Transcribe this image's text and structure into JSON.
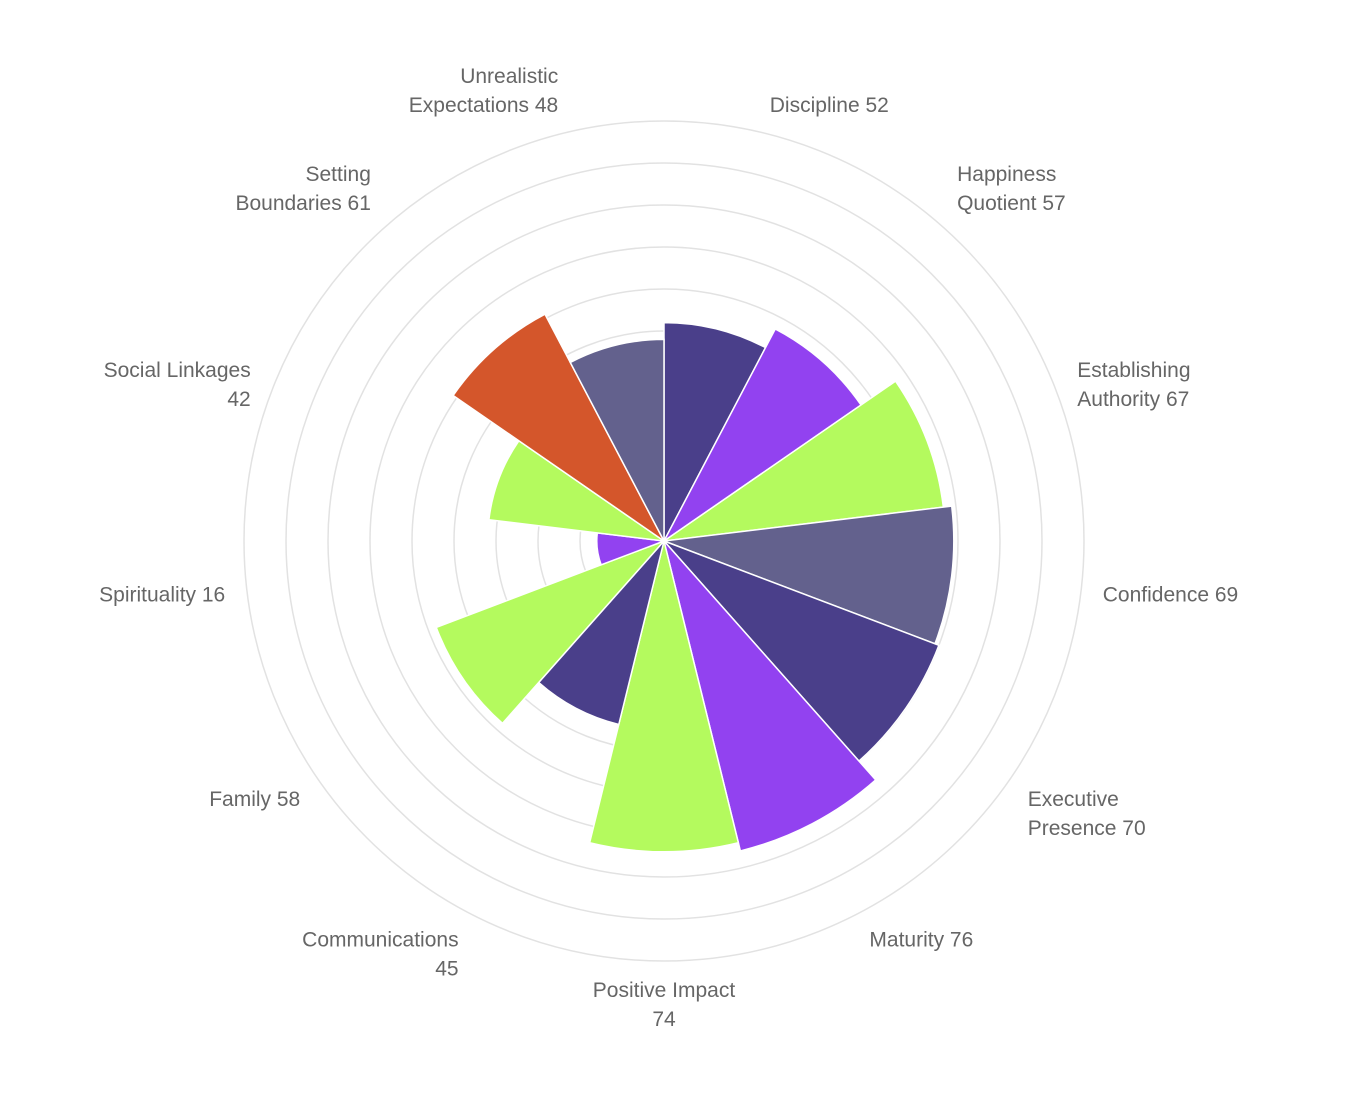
{
  "chart_data": {
    "type": "polar-area",
    "rmax": 100,
    "ring_step": 10,
    "grid": true,
    "legend": "none",
    "categories": [
      {
        "name": "Discipline",
        "value": 52,
        "color": "#4a3f8a",
        "label_lines": [
          "Discipline 52"
        ]
      },
      {
        "name": "Happiness Quotient",
        "value": 57,
        "color": "#9242f0",
        "label_lines": [
          "Happiness",
          "Quotient 57"
        ]
      },
      {
        "name": "Establishing Authority",
        "value": 67,
        "color": "#b4fa5e",
        "label_lines": [
          "Establishing",
          "Authority 67"
        ]
      },
      {
        "name": "Confidence",
        "value": 69,
        "color": "#63618d",
        "label_lines": [
          "Confidence 69"
        ]
      },
      {
        "name": "Executive Presence",
        "value": 70,
        "color": "#4a3f8a",
        "label_lines": [
          "Executive",
          "Presence 70"
        ]
      },
      {
        "name": "Maturity",
        "value": 76,
        "color": "#9242f0",
        "label_lines": [
          "Maturity 76"
        ]
      },
      {
        "name": "Positive Impact",
        "value": 74,
        "color": "#b4fa5e",
        "label_lines": [
          "Positive Impact",
          "74"
        ]
      },
      {
        "name": "Communications",
        "value": 45,
        "color": "#4a3f8a",
        "label_lines": [
          "Communications",
          "45"
        ]
      },
      {
        "name": "Family",
        "value": 58,
        "color": "#b4fa5e",
        "label_lines": [
          "Family 58"
        ]
      },
      {
        "name": "Spirituality",
        "value": 16,
        "color": "#9242f0",
        "label_lines": [
          "Spirituality 16"
        ]
      },
      {
        "name": "Social Linkages",
        "value": 42,
        "color": "#b4fa5e",
        "label_lines": [
          "Social Linkages",
          "42"
        ]
      },
      {
        "name": "Setting Boundaries",
        "value": 61,
        "color": "#d4562b",
        "label_lines": [
          "Setting",
          "Boundaries 61"
        ]
      },
      {
        "name": "Unrealistic Expectations",
        "value": 48,
        "color": "#63618d",
        "label_lines": [
          "Unrealistic",
          "Expectations 48"
        ]
      }
    ]
  }
}
